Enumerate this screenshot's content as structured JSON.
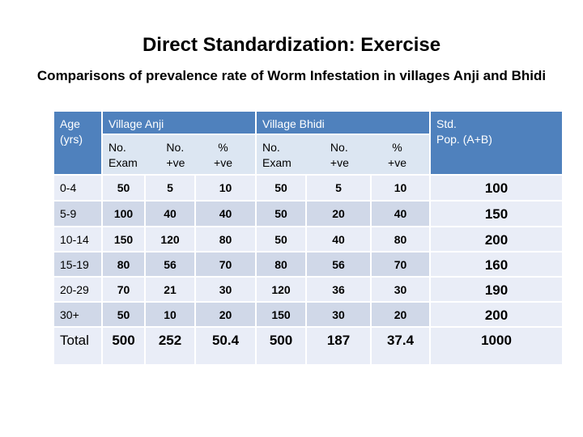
{
  "header": {
    "title": "Direct Standardization: Exercise",
    "subtitle": "Comparisons of prevalence rate of Worm Infestation in villages Anji and Bhidi"
  },
  "table": {
    "head": {
      "age": [
        "Age",
        "(yrs)"
      ],
      "group_a": "Village Anji",
      "group_b": "Village Bhidi",
      "std": [
        "Std.",
        "Pop. (A+B)"
      ],
      "sub": [
        [
          "No.",
          "Exam"
        ],
        [
          "No.",
          "+ve"
        ],
        [
          "%",
          "+ve"
        ],
        [
          "No.",
          "Exam"
        ],
        [
          "No.",
          "+ve"
        ],
        [
          "%",
          "+ve"
        ]
      ]
    },
    "rows": [
      [
        "0-4",
        50,
        5,
        10,
        50,
        5,
        10,
        100
      ],
      [
        "5-9",
        100,
        40,
        40,
        50,
        20,
        40,
        150
      ],
      [
        "10-14",
        150,
        120,
        80,
        50,
        40,
        80,
        200
      ],
      [
        "15-19",
        80,
        56,
        70,
        80,
        56,
        70,
        160
      ],
      [
        "20-29",
        70,
        21,
        30,
        120,
        36,
        30,
        190
      ],
      [
        "30+",
        50,
        10,
        20,
        150,
        30,
        20,
        200
      ],
      [
        "Total",
        500,
        252,
        50.4,
        500,
        187,
        37.4,
        1000
      ]
    ]
  }
}
